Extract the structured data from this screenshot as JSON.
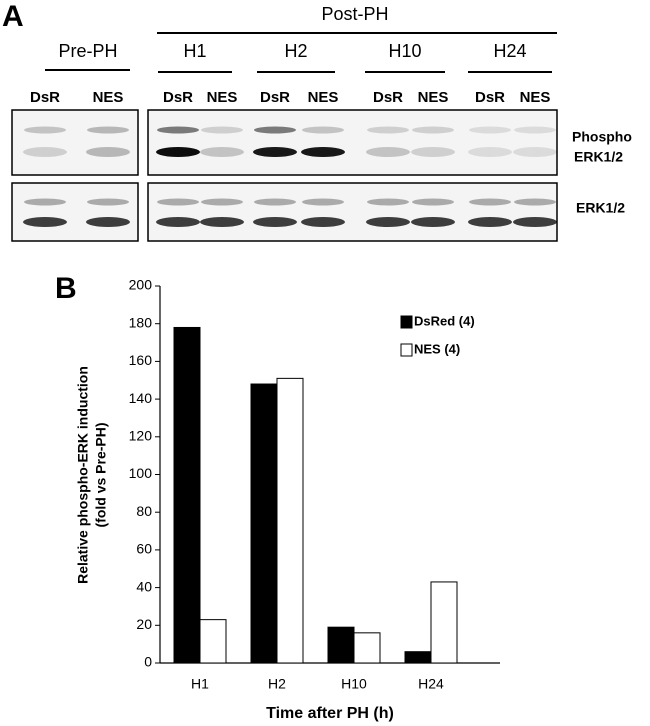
{
  "panel_a": {
    "label": "A",
    "post_ph": "Post-PH",
    "pre_ph": "Pre-PH",
    "timepoints": [
      "H1",
      "H2",
      "H10",
      "H24"
    ],
    "lanes": [
      [
        "DsR",
        "NES"
      ],
      [
        "DsR",
        "NES"
      ],
      [
        "DsR",
        "NES"
      ],
      [
        "DsR",
        "NES"
      ],
      [
        "DsR",
        "NES"
      ]
    ],
    "rows": [
      [
        "Phospho",
        "ERK1/2"
      ],
      [
        "ERK1/2"
      ]
    ]
  },
  "chart_data": {
    "type": "bar",
    "panel_label": "B",
    "ylabel": [
      "Relative phospho-ERK induction",
      "(fold vs Pre-PH)"
    ],
    "xlabel": "Time after PH (h)",
    "categories": [
      "H1",
      "H2",
      "H10",
      "H24"
    ],
    "series": [
      {
        "name": "DsRed (4)",
        "color": "#000000",
        "values": [
          178,
          148,
          19,
          6
        ]
      },
      {
        "name": "NES (4)",
        "color": "#ffffff",
        "values": [
          23,
          151,
          16,
          43
        ]
      }
    ],
    "ylim": [
      0,
      200
    ],
    "yticks": [
      0,
      20,
      40,
      60,
      80,
      100,
      120,
      140,
      160,
      180,
      200
    ]
  }
}
